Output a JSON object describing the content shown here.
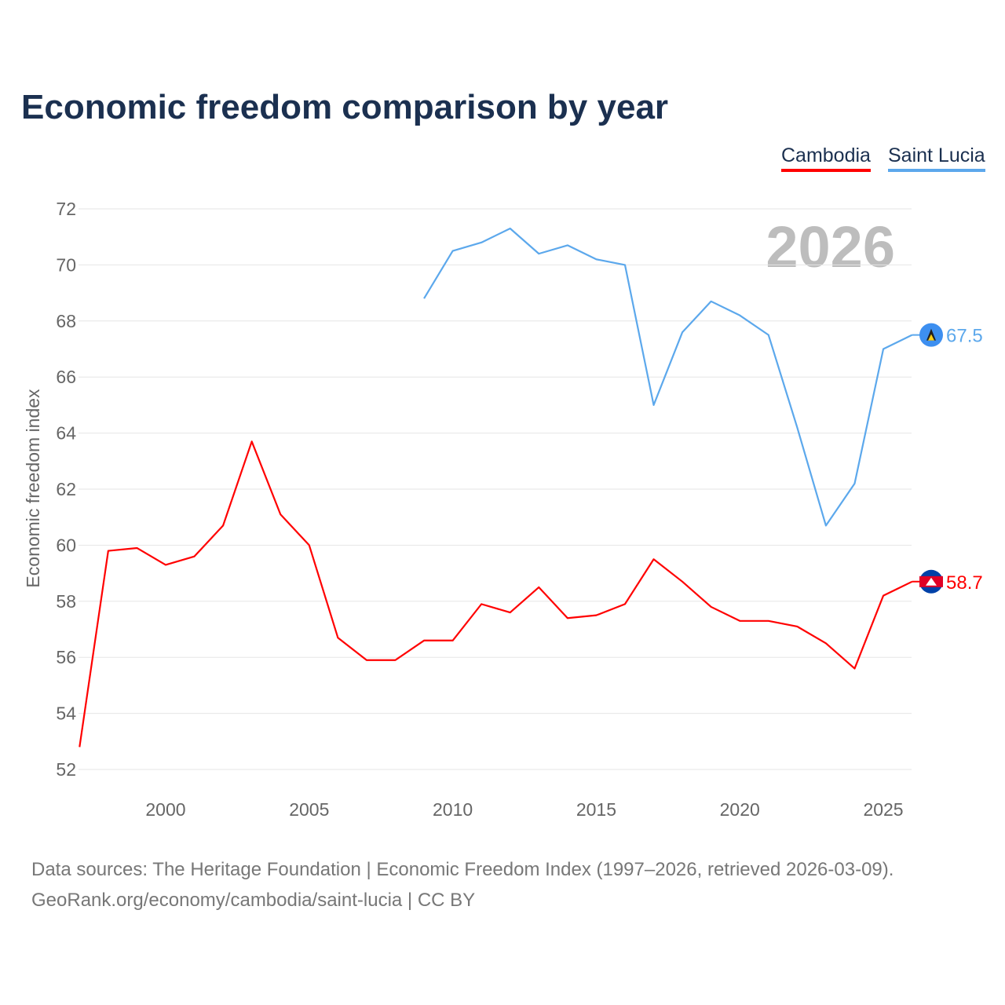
{
  "chart_data": {
    "type": "line",
    "title": "Economic freedom comparison by year",
    "ylabel": "Economic freedom index",
    "xlabel": "",
    "ylim": [
      52,
      72
    ],
    "xlim": [
      1997,
      2026
    ],
    "yticks": [
      52,
      54,
      56,
      58,
      60,
      62,
      64,
      66,
      68,
      70,
      72
    ],
    "xticks": [
      2000,
      2005,
      2010,
      2015,
      2020,
      2025
    ],
    "grid": true,
    "legend_placement": "top-right",
    "watermark_year": "2026",
    "series": [
      {
        "name": "Cambodia",
        "color": "#ff0000",
        "end_label": "58.7",
        "x": [
          1997,
          1998,
          1999,
          2000,
          2001,
          2002,
          2003,
          2004,
          2005,
          2006,
          2007,
          2008,
          2009,
          2010,
          2011,
          2012,
          2013,
          2014,
          2015,
          2016,
          2017,
          2018,
          2019,
          2020,
          2021,
          2022,
          2023,
          2024,
          2025,
          2026
        ],
        "values": [
          52.8,
          59.8,
          59.9,
          59.3,
          59.6,
          60.7,
          63.7,
          61.1,
          60.0,
          56.7,
          55.9,
          55.9,
          56.6,
          56.6,
          57.9,
          57.6,
          58.5,
          57.4,
          57.5,
          57.9,
          59.5,
          58.7,
          57.8,
          57.3,
          57.3,
          57.1,
          56.5,
          55.6,
          58.2,
          58.7
        ]
      },
      {
        "name": "Saint Lucia",
        "color": "#5ca8ec",
        "end_label": "67.5",
        "x": [
          2009,
          2010,
          2011,
          2012,
          2013,
          2014,
          2015,
          2016,
          2017,
          2018,
          2019,
          2020,
          2021,
          2022,
          2023,
          2024,
          2025,
          2026
        ],
        "values": [
          68.8,
          70.5,
          70.8,
          71.3,
          70.4,
          70.7,
          70.2,
          70.0,
          65.0,
          67.6,
          68.7,
          68.2,
          67.5,
          64.2,
          60.7,
          62.2,
          67.0,
          67.5
        ]
      }
    ]
  },
  "footer": {
    "line1": "Data sources: The Heritage Foundation | Economic Freedom Index (1997–2026, retrieved 2026-03-09).",
    "line2": "GeoRank.org/economy/cambodia/saint-lucia | CC BY"
  }
}
